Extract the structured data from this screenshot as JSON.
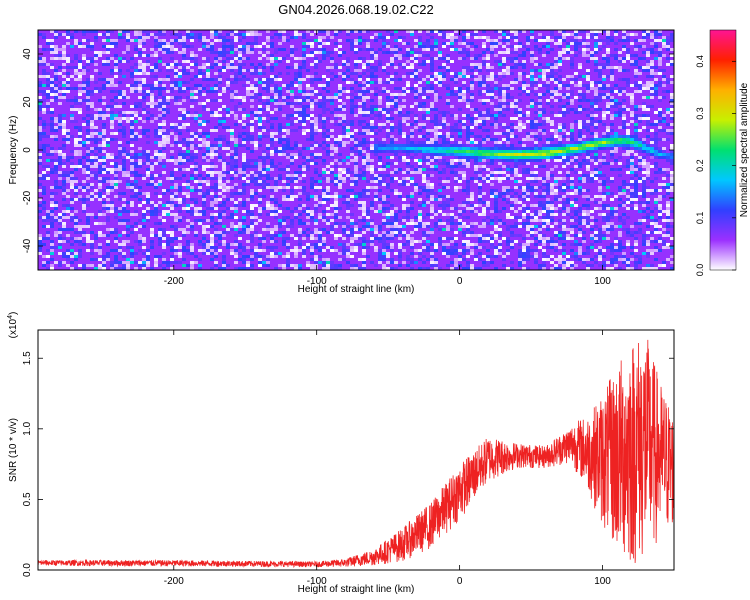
{
  "figure": {
    "title": "GN04.2026.068.19.02.C22"
  },
  "chart_data": [
    {
      "type": "heatmap",
      "xlabel": "Height of straight line (km)",
      "ylabel": "Frequency (Hz)",
      "xlim": [
        -295,
        150
      ],
      "ylim": [
        -50,
        50
      ],
      "x_ticks": [
        -200,
        -100,
        0,
        100
      ],
      "x_tick_labels": [
        "-200",
        "-100",
        "0",
        "100"
      ],
      "y_ticks": [
        -40,
        -20,
        0,
        20,
        40
      ],
      "y_tick_labels": [
        "-40",
        "-20",
        "0",
        "20",
        "40"
      ],
      "background_level": 0.06,
      "ridge": {
        "x": [
          -60,
          -40,
          -20,
          0,
          20,
          40,
          60,
          80,
          100,
          110,
          120,
          130,
          140,
          150
        ],
        "frequency": [
          1.0,
          1.0,
          0.0,
          -0.5,
          -1.5,
          -2.0,
          -1.5,
          0.5,
          3.0,
          4.0,
          3.5,
          1.0,
          -2.0,
          -3.0
        ],
        "amplitude": [
          0.15,
          0.17,
          0.2,
          0.24,
          0.27,
          0.3,
          0.31,
          0.29,
          0.28,
          0.27,
          0.25,
          0.2,
          0.17,
          0.15
        ]
      },
      "colorbar": {
        "label": "Normalized spectral amplitude",
        "range": [
          0.0,
          0.46
        ],
        "ticks": [
          0.0,
          0.1,
          0.2,
          0.3,
          0.4
        ],
        "tick_labels": [
          "0.0",
          "0.1",
          "0.2",
          "0.3",
          "0.4"
        ],
        "colors": [
          "#ffffff",
          "#9b30ff",
          "#3040ff",
          "#00c8ff",
          "#00e070",
          "#c8f000",
          "#ffb000",
          "#ff2000",
          "#ff1493"
        ]
      }
    },
    {
      "type": "line",
      "xlabel": "Height of straight line (km)",
      "ylabel": "SNR (10 * v/v)",
      "y_multiplier_label": "(x10",
      "y_multiplier_exp": "4",
      "xlim": [
        -295,
        150
      ],
      "ylim": [
        0,
        1.7
      ],
      "x_ticks": [
        -200,
        -100,
        0,
        100
      ],
      "x_tick_labels": [
        "-200",
        "-100",
        "0",
        "100"
      ],
      "y_ticks": [
        0.0,
        0.5,
        1.0,
        1.5
      ],
      "y_tick_labels": [
        "0.0",
        "0.5",
        "1.0",
        "1.5"
      ],
      "series_color": "#ee2222",
      "envelope": {
        "x": [
          -295,
          -200,
          -100,
          -80,
          -60,
          -40,
          -20,
          0,
          20,
          40,
          60,
          75,
          80,
          90,
          100,
          110,
          120,
          130,
          140,
          150
        ],
        "baseline": [
          0.03,
          0.025,
          0.02,
          0.02,
          0.03,
          0.06,
          0.15,
          0.35,
          0.62,
          0.72,
          0.72,
          0.75,
          0.72,
          0.55,
          0.3,
          0.1,
          0.0,
          0.05,
          0.2,
          0.3
        ],
        "peak": [
          0.07,
          0.07,
          0.06,
          0.08,
          0.15,
          0.3,
          0.48,
          0.75,
          0.95,
          0.9,
          0.88,
          1.0,
          1.05,
          1.1,
          1.25,
          1.45,
          1.65,
          1.7,
          1.35,
          1.1
        ]
      }
    }
  ]
}
